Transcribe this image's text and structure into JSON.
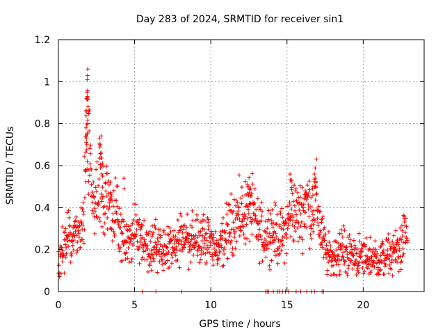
{
  "chart_data": {
    "type": "scatter",
    "title": "Day 283 of 2024, SRMTID for receiver sin1",
    "xlabel": "GPS time / hours",
    "ylabel": "SRMTID / TECUs",
    "xlim": [
      0,
      24
    ],
    "ylim": [
      0,
      1.2
    ],
    "x_ticks": [
      0,
      5,
      10,
      15,
      20
    ],
    "x_tick_labels": [
      "0",
      "5",
      "10",
      "15",
      "20"
    ],
    "y_ticks": [
      0,
      0.2,
      0.4,
      0.6,
      0.8,
      1.0,
      1.2
    ],
    "y_tick_labels": [
      "0",
      "0.2",
      "0.4",
      "0.6",
      "0.8",
      "1",
      "1.2"
    ],
    "grid": true,
    "marker": "+",
    "color": "#ff0000",
    "series": [
      {
        "name": "SRMTID",
        "trend": [
          [
            0.0,
            0.14
          ],
          [
            0.3,
            0.2
          ],
          [
            0.6,
            0.24
          ],
          [
            1.0,
            0.26
          ],
          [
            1.3,
            0.25
          ],
          [
            1.6,
            0.35
          ],
          [
            1.8,
            0.6
          ],
          [
            1.95,
            0.85
          ],
          [
            2.1,
            0.55
          ],
          [
            2.3,
            0.38
          ],
          [
            2.6,
            0.42
          ],
          [
            2.8,
            0.55
          ],
          [
            3.0,
            0.45
          ],
          [
            3.3,
            0.4
          ],
          [
            3.6,
            0.35
          ],
          [
            3.8,
            0.4
          ],
          [
            4.1,
            0.27
          ],
          [
            4.5,
            0.24
          ],
          [
            5.0,
            0.26
          ],
          [
            5.5,
            0.22
          ],
          [
            6.0,
            0.21
          ],
          [
            6.5,
            0.21
          ],
          [
            7.0,
            0.2
          ],
          [
            7.5,
            0.2
          ],
          [
            8.0,
            0.25
          ],
          [
            8.5,
            0.25
          ],
          [
            9.0,
            0.24
          ],
          [
            9.5,
            0.24
          ],
          [
            10.0,
            0.26
          ],
          [
            10.5,
            0.18
          ],
          [
            11.0,
            0.28
          ],
          [
            11.5,
            0.34
          ],
          [
            12.0,
            0.36
          ],
          [
            12.3,
            0.38
          ],
          [
            12.6,
            0.4
          ],
          [
            13.0,
            0.32
          ],
          [
            13.5,
            0.26
          ],
          [
            14.0,
            0.3
          ],
          [
            14.5,
            0.25
          ],
          [
            15.0,
            0.3
          ],
          [
            15.3,
            0.4
          ],
          [
            15.7,
            0.36
          ],
          [
            16.0,
            0.38
          ],
          [
            16.3,
            0.44
          ],
          [
            16.6,
            0.38
          ],
          [
            16.9,
            0.45
          ],
          [
            17.2,
            0.3
          ],
          [
            17.6,
            0.17
          ],
          [
            18.0,
            0.16
          ],
          [
            18.5,
            0.2
          ],
          [
            19.0,
            0.18
          ],
          [
            19.5,
            0.17
          ],
          [
            20.0,
            0.16
          ],
          [
            20.5,
            0.16
          ],
          [
            21.0,
            0.15
          ],
          [
            21.5,
            0.17
          ],
          [
            22.0,
            0.18
          ],
          [
            22.5,
            0.22
          ],
          [
            22.8,
            0.28
          ]
        ],
        "peaks": [
          [
            1.8,
            0.86
          ],
          [
            1.85,
            0.92
          ],
          [
            1.88,
            0.95
          ],
          [
            1.9,
            1.01
          ],
          [
            1.92,
            1.06
          ],
          [
            1.95,
            0.88
          ],
          [
            1.82,
            0.78
          ],
          [
            1.86,
            0.7
          ],
          [
            1.9,
            0.62
          ],
          [
            1.78,
            0.58
          ],
          [
            1.92,
            0.8
          ],
          [
            2.0,
            0.58
          ],
          [
            2.7,
            0.73
          ],
          [
            2.75,
            0.7
          ],
          [
            2.8,
            0.66
          ],
          [
            2.85,
            0.6
          ],
          [
            2.9,
            0.55
          ],
          [
            3.4,
            0.52
          ],
          [
            4.3,
            0.54
          ],
          [
            12.4,
            0.51
          ],
          [
            12.5,
            0.5
          ],
          [
            12.6,
            0.49
          ],
          [
            15.2,
            0.56
          ],
          [
            15.3,
            0.53
          ],
          [
            16.8,
            0.56
          ],
          [
            16.85,
            0.54
          ],
          [
            16.9,
            0.52
          ],
          [
            16.7,
            0.5
          ],
          [
            16.2,
            0.48
          ]
        ],
        "zero_points": [
          5.5,
          6.4,
          8.1,
          13.6,
          13.7,
          13.8,
          14.1,
          14.4,
          14.5,
          14.7,
          14.9,
          15.1,
          15.6,
          15.9,
          16.3,
          16.6,
          16.8,
          17.3,
          17.4
        ]
      }
    ]
  }
}
